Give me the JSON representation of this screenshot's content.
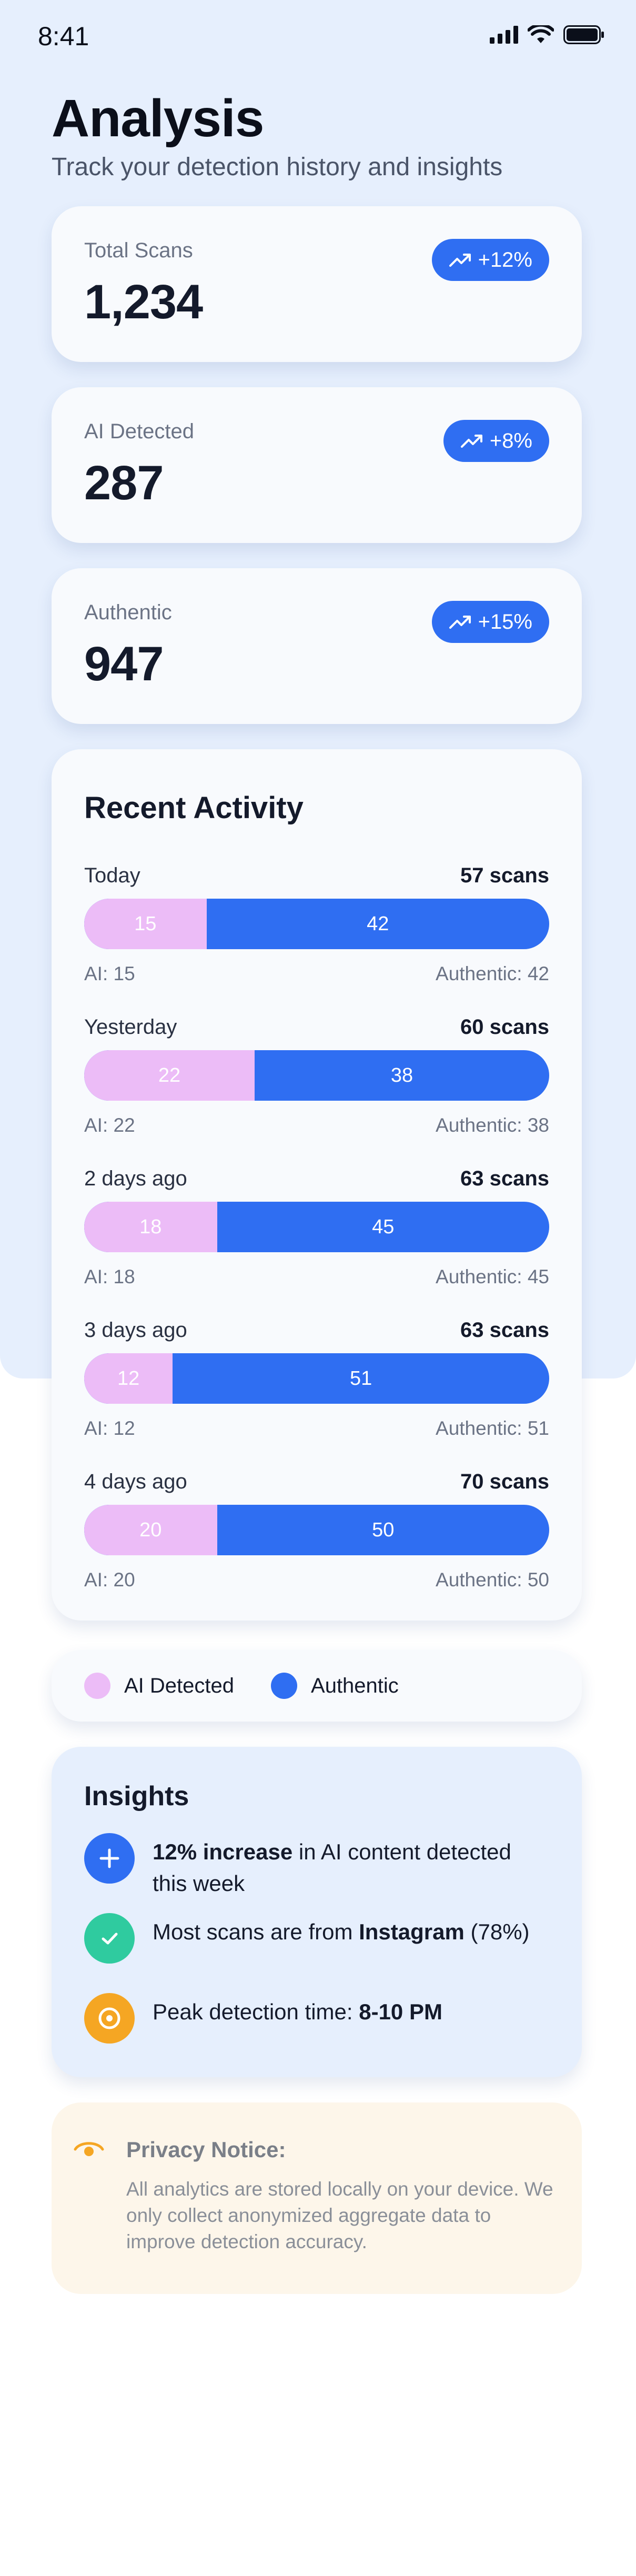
{
  "status_bar": {
    "time": "8:41"
  },
  "header": {
    "title": "Analysis",
    "subtitle": "Track your detection history and insights"
  },
  "stats": [
    {
      "label": "Total Scans",
      "value": "1,234",
      "trend": "+12%"
    },
    {
      "label": "AI Detected",
      "value": "287",
      "trend": "+8%"
    },
    {
      "label": "Authentic",
      "value": "947",
      "trend": "+15%"
    }
  ],
  "recent_activity": {
    "title": "Recent Activity",
    "rows": [
      {
        "label": "Today",
        "total": "57 scans",
        "ai": 15,
        "authentic": 42,
        "ai_caption": "AI: 15",
        "authentic_caption": "Authentic: 42"
      },
      {
        "label": "Yesterday",
        "total": "60 scans",
        "ai": 22,
        "authentic": 38,
        "ai_caption": "AI: 22",
        "authentic_caption": "Authentic: 38"
      },
      {
        "label": "2 days ago",
        "total": "63 scans",
        "ai": 18,
        "authentic": 45,
        "ai_caption": "AI: 18",
        "authentic_caption": "Authentic: 45"
      },
      {
        "label": "3 days ago",
        "total": "63 scans",
        "ai": 12,
        "authentic": 51,
        "ai_caption": "AI: 12",
        "authentic_caption": "Authentic: 51"
      },
      {
        "label": "4 days ago",
        "total": "70 scans",
        "ai": 20,
        "authentic": 50,
        "ai_caption": "AI: 20",
        "authentic_caption": "Authentic: 50"
      }
    ]
  },
  "legend": {
    "ai_label": "AI Detected",
    "authentic_label": "Authentic"
  },
  "insights": {
    "title": "Insights",
    "items": [
      {
        "icon": "plus-icon",
        "bold": "12% increase",
        "text": " in AI content detected this week"
      },
      {
        "icon": "check-icon",
        "text": "Most scans are from ",
        "bold": "Instagram",
        "text_after": " (78%)"
      },
      {
        "icon": "target-icon",
        "text": "Peak detection time: ",
        "bold": "8-10 PM"
      }
    ]
  },
  "privacy": {
    "icon": "eye-icon",
    "title": "Privacy Notice:",
    "text": "All analytics are stored locally on your device. We only collect anonymized aggregate data to improve detection accuracy."
  },
  "colors": {
    "accent_blue": "#2f6ef2",
    "ai_pink": "#ecbcf7",
    "green": "#2fcb9f",
    "orange": "#f5a623"
  }
}
